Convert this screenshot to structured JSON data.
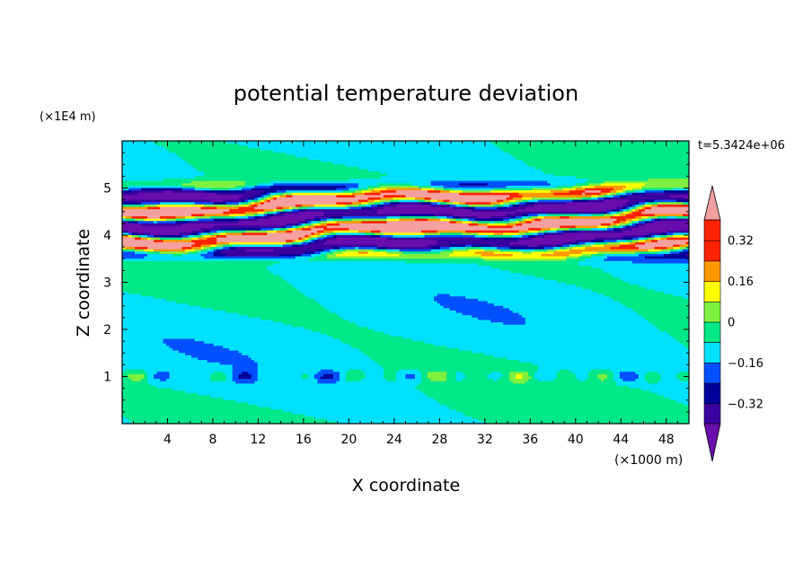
{
  "chart_data": {
    "type": "heatmap",
    "title": "potential temperature deviation",
    "xlabel": "X coordinate",
    "ylabel": "Z coordinate",
    "x_unit": "(×1000 m)",
    "y_unit": "(×1E4 m)",
    "time_label": "t=5.3424e+06",
    "xlim": [
      0,
      50
    ],
    "ylim": [
      0,
      6
    ],
    "x_ticks": [
      4,
      8,
      12,
      16,
      20,
      24,
      28,
      32,
      36,
      40,
      44,
      48
    ],
    "y_ticks": [
      1,
      2,
      3,
      4,
      5
    ],
    "colorbar": {
      "levels": [
        -0.4,
        -0.32,
        -0.24,
        -0.16,
        -0.08,
        0,
        0.08,
        0.16,
        0.24,
        0.32,
        0.4
      ],
      "labeled_ticks": [
        {
          "value": 0.32,
          "label": "0.32"
        },
        {
          "value": 0.16,
          "label": "0.16"
        },
        {
          "value": 0,
          "label": "0"
        },
        {
          "value": -0.16,
          "label": "−0.16"
        },
        {
          "value": -0.32,
          "label": "−0.32"
        }
      ],
      "colors": [
        "#6a0dad",
        "#3a00a0",
        "#00009a",
        "#0050ff",
        "#00e0ff",
        "#00e888",
        "#80f040",
        "#ffff00",
        "#ff9900",
        "#ff2200",
        "#f5a0a0"
      ],
      "extend": "both"
    }
  }
}
